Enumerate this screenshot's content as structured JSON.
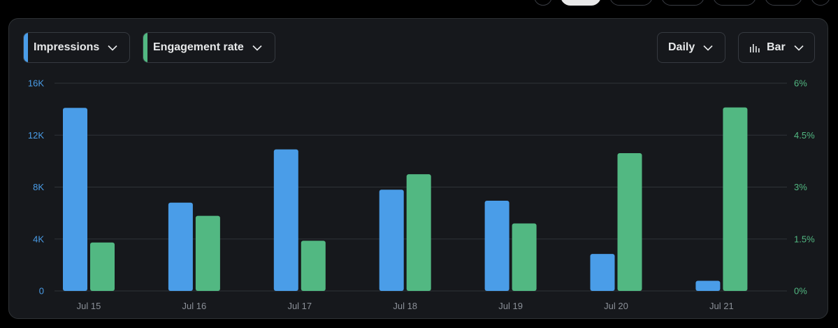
{
  "controls": {
    "metric1": {
      "label": "Impressions",
      "color": "#4a9de8"
    },
    "metric2": {
      "label": "Engagement rate",
      "color": "#52b882"
    },
    "interval": {
      "label": "Daily"
    },
    "chart_type": {
      "label": "Bar",
      "icon": "bar-chart-icon"
    }
  },
  "chart_data": {
    "type": "bar",
    "categories": [
      "Jul 15",
      "Jul 16",
      "Jul 17",
      "Jul 18",
      "Jul 19",
      "Jul 20",
      "Jul 21"
    ],
    "series": [
      {
        "name": "Impressions",
        "axis": "left",
        "color": "#4a9de8",
        "values": [
          14100,
          6800,
          10900,
          7800,
          6950,
          2850,
          780
        ]
      },
      {
        "name": "Engagement rate",
        "axis": "right",
        "color": "#52b882",
        "values": [
          1.4,
          2.17,
          1.45,
          3.37,
          1.95,
          3.98,
          5.3
        ]
      }
    ],
    "y_left": {
      "ylim": [
        0,
        16000
      ],
      "ticks": [
        0,
        4000,
        8000,
        12000,
        16000
      ],
      "tick_labels": [
        "0",
        "4K",
        "8K",
        "12K",
        "16K"
      ],
      "color": "#4a9de8"
    },
    "y_right": {
      "ylim": [
        0,
        6
      ],
      "ticks": [
        0,
        1.5,
        3,
        4.5,
        6
      ],
      "tick_labels": [
        "0%",
        "1.5%",
        "3%",
        "4.5%",
        "6%"
      ],
      "color": "#52b882"
    },
    "grid": true,
    "xlabel": "",
    "ylabel": "",
    "title": ""
  }
}
